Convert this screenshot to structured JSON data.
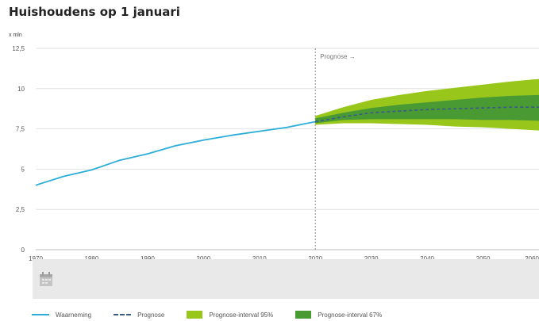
{
  "title": "Huishoudens op 1 januari",
  "unit": "x mln",
  "annotation": "Prognose →",
  "colors": {
    "observed": "#2aaed8",
    "forecast": "#3a5a8a",
    "interval95": "#99c61a",
    "interval67": "#4a9a34",
    "grid": "#e2e2e2",
    "divider": "#888888"
  },
  "legend": {
    "observed": "Waarneming",
    "forecast": "Prognose",
    "interval95": "Prognose-interval 95%",
    "interval67": "Prognose-interval 67%"
  },
  "chart_data": {
    "type": "line",
    "title": "Huishoudens op 1 januari",
    "ylabel": "x mln",
    "xlim": [
      1970,
      2060
    ],
    "ylim": [
      0,
      12.5
    ],
    "y_ticks": [
      "0",
      "2,5",
      "5",
      "7,5",
      "10",
      "12,5"
    ],
    "y_tick_values": [
      0,
      2.5,
      5,
      7.5,
      10,
      12.5
    ],
    "x_ticks": [
      "1970",
      "1980",
      "1990",
      "2000",
      "2010",
      "2020",
      "2030",
      "2040",
      "2050",
      "2060"
    ],
    "x_tick_values": [
      1970,
      1980,
      1990,
      2000,
      2010,
      2020,
      2030,
      2040,
      2050,
      2060
    ],
    "grid": true,
    "legend_position": "bottom",
    "series": [
      {
        "name": "Waarneming",
        "x": [
          1970,
          1975,
          1980,
          1985,
          1990,
          1995,
          2000,
          2005,
          2010,
          2015,
          2020
        ],
        "values": [
          4.0,
          4.55,
          4.95,
          5.55,
          5.95,
          6.45,
          6.8,
          7.1,
          7.35,
          7.6,
          7.95
        ]
      },
      {
        "name": "Prognose",
        "x": [
          2020,
          2025,
          2030,
          2035,
          2040,
          2045,
          2050,
          2055,
          2060
        ],
        "values": [
          7.95,
          8.25,
          8.5,
          8.6,
          8.7,
          8.75,
          8.8,
          8.85,
          8.85
        ]
      },
      {
        "name": "Prognose-interval 95%",
        "x": [
          2020,
          2025,
          2030,
          2035,
          2040,
          2045,
          2050,
          2055,
          2060
        ],
        "lower": [
          7.75,
          7.85,
          7.85,
          7.8,
          7.75,
          7.65,
          7.6,
          7.5,
          7.4
        ],
        "upper": [
          8.3,
          8.85,
          9.3,
          9.6,
          9.85,
          10.05,
          10.25,
          10.45,
          10.6
        ]
      },
      {
        "name": "Prognose-interval 67%",
        "x": [
          2020,
          2025,
          2030,
          2035,
          2040,
          2045,
          2050,
          2055,
          2060
        ],
        "lower": [
          7.85,
          8.05,
          8.1,
          8.1,
          8.1,
          8.1,
          8.05,
          8.05,
          8.0
        ],
        "upper": [
          8.15,
          8.5,
          8.8,
          9.0,
          9.15,
          9.3,
          9.45,
          9.55,
          9.6
        ]
      }
    ],
    "forecast_start": 2020
  }
}
